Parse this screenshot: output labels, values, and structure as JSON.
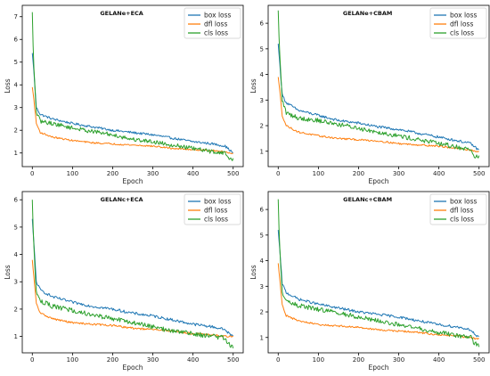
{
  "colors": {
    "box_loss": "#1f77b4",
    "dfl_loss": "#ff7f0e",
    "cls_loss": "#2ca02c"
  },
  "chart_data": [
    {
      "type": "line",
      "title": "GELANe+ECA",
      "xlabel": "Epoch",
      "ylabel": "Loss",
      "xlim": [
        -25,
        525
      ],
      "ylim": [
        0.4,
        7.5
      ],
      "xticks": [
        0,
        100,
        200,
        300,
        400,
        500
      ],
      "yticks": [
        1,
        2,
        3,
        4,
        5,
        6,
        7
      ],
      "grid": false,
      "legend_position": "top-right",
      "x": [
        0,
        3,
        10,
        20,
        50,
        100,
        150,
        200,
        250,
        300,
        350,
        400,
        450,
        480,
        490,
        500
      ],
      "series": [
        {
          "name": "box loss",
          "color_key": "box_loss",
          "values": [
            5.4,
            4.8,
            3.0,
            2.7,
            2.5,
            2.3,
            2.15,
            2.0,
            1.9,
            1.8,
            1.65,
            1.5,
            1.4,
            1.3,
            1.15,
            1.0
          ]
        },
        {
          "name": "dfl loss",
          "color_key": "dfl_loss",
          "values": [
            3.9,
            3.5,
            2.3,
            1.9,
            1.7,
            1.55,
            1.45,
            1.4,
            1.35,
            1.3,
            1.2,
            1.15,
            1.1,
            1.05,
            1.0,
            1.0
          ]
        },
        {
          "name": "cls loss",
          "color_key": "cls_loss",
          "values": [
            7.2,
            5.0,
            2.8,
            2.4,
            2.3,
            2.1,
            1.95,
            1.8,
            1.6,
            1.5,
            1.35,
            1.2,
            1.05,
            1.0,
            0.75,
            0.7
          ]
        }
      ]
    },
    {
      "type": "line",
      "title": "GELANe+CBAM",
      "xlabel": "Epoch",
      "ylabel": "Loss",
      "xlim": [
        -25,
        525
      ],
      "ylim": [
        0.4,
        6.7
      ],
      "xticks": [
        0,
        100,
        200,
        300,
        400,
        500
      ],
      "yticks": [
        1,
        2,
        3,
        4,
        5,
        6
      ],
      "grid": false,
      "legend_position": "top-right",
      "x": [
        0,
        3,
        10,
        20,
        50,
        100,
        150,
        200,
        250,
        300,
        350,
        400,
        450,
        480,
        490,
        500
      ],
      "series": [
        {
          "name": "box loss",
          "color_key": "box_loss",
          "values": [
            5.2,
            4.6,
            3.2,
            2.9,
            2.6,
            2.4,
            2.2,
            2.1,
            1.95,
            1.85,
            1.7,
            1.55,
            1.4,
            1.3,
            1.15,
            1.05
          ]
        },
        {
          "name": "dfl loss",
          "color_key": "dfl_loss",
          "values": [
            3.9,
            3.5,
            2.4,
            2.0,
            1.75,
            1.6,
            1.5,
            1.45,
            1.4,
            1.3,
            1.25,
            1.2,
            1.1,
            1.05,
            1.0,
            1.0
          ]
        },
        {
          "name": "cls loss",
          "color_key": "cls_loss",
          "values": [
            6.5,
            5.0,
            3.0,
            2.5,
            2.3,
            2.2,
            2.05,
            1.9,
            1.75,
            1.6,
            1.45,
            1.3,
            1.15,
            1.05,
            0.8,
            0.75
          ]
        }
      ]
    },
    {
      "type": "line",
      "title": "GELANc+ECA",
      "xlabel": "Epoch",
      "ylabel": "Loss",
      "xlim": [
        -25,
        525
      ],
      "ylim": [
        0.4,
        6.3
      ],
      "xticks": [
        0,
        100,
        200,
        300,
        400,
        500
      ],
      "yticks": [
        1,
        2,
        3,
        4,
        5,
        6
      ],
      "grid": false,
      "legend_position": "top-right",
      "x": [
        0,
        3,
        10,
        20,
        50,
        100,
        150,
        200,
        250,
        300,
        350,
        400,
        450,
        480,
        490,
        500
      ],
      "series": [
        {
          "name": "box loss",
          "color_key": "box_loss",
          "values": [
            5.3,
            4.6,
            3.0,
            2.7,
            2.45,
            2.25,
            2.1,
            2.0,
            1.85,
            1.75,
            1.6,
            1.45,
            1.35,
            1.25,
            1.1,
            1.0
          ]
        },
        {
          "name": "dfl loss",
          "color_key": "dfl_loss",
          "values": [
            3.8,
            3.3,
            2.2,
            1.85,
            1.65,
            1.5,
            1.45,
            1.4,
            1.3,
            1.25,
            1.2,
            1.1,
            1.05,
            1.0,
            1.0,
            1.0
          ]
        },
        {
          "name": "cls loss",
          "color_key": "cls_loss",
          "values": [
            6.0,
            4.5,
            2.6,
            2.3,
            2.1,
            1.95,
            1.8,
            1.65,
            1.5,
            1.35,
            1.2,
            1.1,
            1.0,
            0.95,
            0.7,
            0.65
          ]
        }
      ]
    },
    {
      "type": "line",
      "title": "GELANc+CBAM",
      "xlabel": "Epoch",
      "ylabel": "Loss",
      "xlim": [
        -25,
        525
      ],
      "ylim": [
        0.4,
        6.7
      ],
      "xticks": [
        0,
        100,
        200,
        300,
        400,
        500
      ],
      "yticks": [
        1,
        2,
        3,
        4,
        5,
        6
      ],
      "grid": false,
      "legend_position": "top-right",
      "x": [
        0,
        3,
        10,
        20,
        50,
        100,
        150,
        200,
        250,
        300,
        350,
        400,
        450,
        480,
        490,
        500
      ],
      "series": [
        {
          "name": "box loss",
          "color_key": "box_loss",
          "values": [
            5.2,
            4.6,
            3.1,
            2.75,
            2.5,
            2.3,
            2.15,
            2.0,
            1.9,
            1.8,
            1.65,
            1.5,
            1.4,
            1.3,
            1.1,
            1.0
          ]
        },
        {
          "name": "dfl loss",
          "color_key": "dfl_loss",
          "values": [
            3.9,
            3.4,
            2.3,
            1.85,
            1.65,
            1.5,
            1.45,
            1.4,
            1.3,
            1.25,
            1.2,
            1.1,
            1.05,
            1.0,
            0.95,
            0.95
          ]
        },
        {
          "name": "cls loss",
          "color_key": "cls_loss",
          "values": [
            6.4,
            4.7,
            2.8,
            2.4,
            2.25,
            2.1,
            1.95,
            1.8,
            1.65,
            1.5,
            1.35,
            1.2,
            1.05,
            1.0,
            0.75,
            0.7
          ]
        }
      ]
    }
  ]
}
